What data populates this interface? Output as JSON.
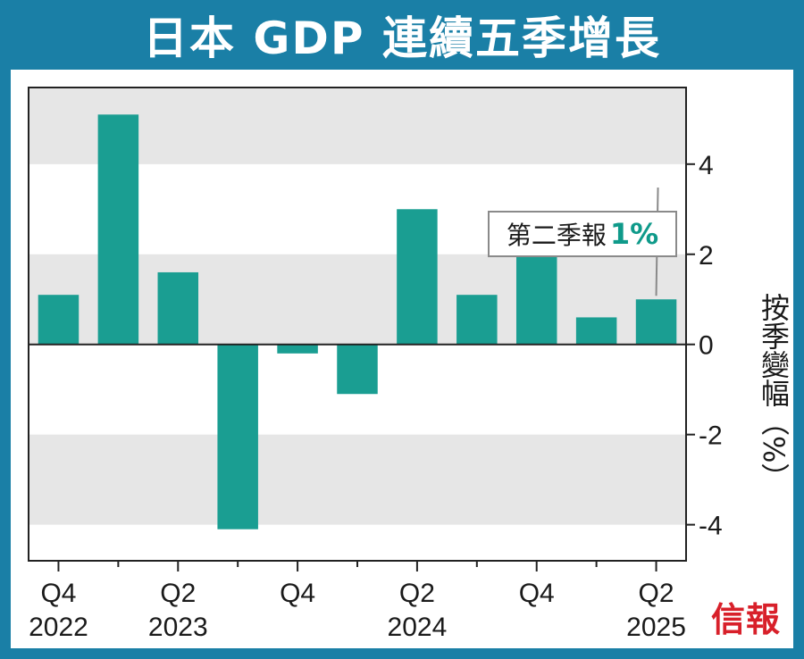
{
  "title": "日本 GDP 連續五季增長",
  "ylabel": "按季變幅（%）",
  "logo": "信報",
  "annotation": {
    "label": "第二季報",
    "value": "1%"
  },
  "colors": {
    "bar": "#1a9e92",
    "frame": "#1a7fa6",
    "band": "#e6e6e6",
    "accent": "#0f9a8a",
    "logo": "#d8202a"
  },
  "chart_data": {
    "type": "bar",
    "title": "日本 GDP 連續五季增長",
    "ylabel": "按季變幅（%）",
    "categories": [
      "Q4 2022",
      "Q1 2023",
      "Q2 2023",
      "Q3 2023",
      "Q4 2023",
      "Q1 2024",
      "Q2 2024",
      "Q3 2024",
      "Q4 2024",
      "Q1 2025",
      "Q2 2025"
    ],
    "values": [
      1.1,
      5.1,
      1.6,
      -4.1,
      -0.2,
      -1.1,
      3.0,
      1.1,
      2.4,
      0.6,
      1.0
    ],
    "ylim": [
      -4.8,
      5.7
    ],
    "yticks": [
      -4,
      -2,
      0,
      2,
      4
    ],
    "ytick_labels": [
      "-4",
      "-2",
      "0",
      "2",
      "4"
    ],
    "xtick_labels": [
      {
        "index": 0,
        "q": "Q4",
        "year": "2022"
      },
      {
        "index": 2,
        "q": "Q2",
        "year": "2023"
      },
      {
        "index": 4,
        "q": "Q4",
        "year": ""
      },
      {
        "index": 6,
        "q": "Q2",
        "year": "2024"
      },
      {
        "index": 8,
        "q": "Q4",
        "year": ""
      },
      {
        "index": 10,
        "q": "Q2",
        "year": "2025"
      }
    ],
    "grid": "alternating horizontal bands",
    "yaxis_position": "right"
  }
}
